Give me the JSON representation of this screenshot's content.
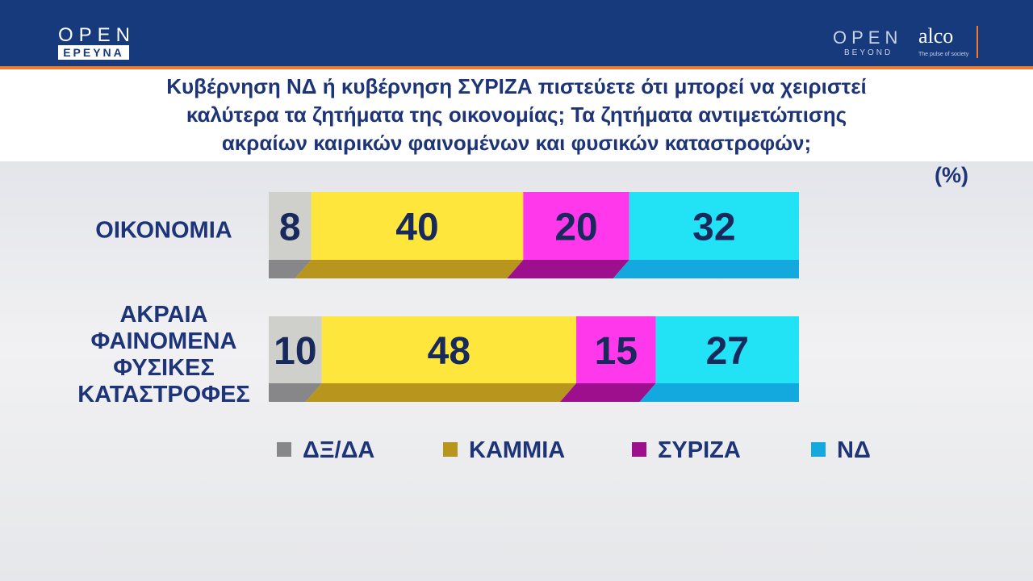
{
  "header": {
    "logo": "OPEN",
    "logo_sub": "ΕΡΕΥΝΑ",
    "partner_logo": "OPEN",
    "partner_sub": "BEYOND",
    "pollster": "alco",
    "pollster_tagline": "The pulse of society"
  },
  "chart_data": {
    "type": "bar",
    "orientation": "horizontal",
    "stacked": true,
    "title": "Κυβέρνηση ΝΔ ή κυβέρνηση ΣΥΡΙΖΑ πιστεύετε ότι μπορεί να χειριστεί\nκαλύτερα τα ζητήματα της οικονομίας; Τα ζητήματα αντιμετώπισης\nακραίων καιρικών φαινομένων και φυσικών καταστροφών;",
    "unit": "(%)",
    "categories": [
      "ΟΙΚΟΝΟΜΙΑ",
      "ΑΚΡΑΙΑ\nΦΑΙΝΟΜΕΝΑ\nΦΥΣΙΚΕΣ\nΚΑΤΑΣΤΡΟΦΕΣ"
    ],
    "xlim": [
      0,
      100
    ],
    "series": [
      {
        "name": "ΔΞ/ΔΑ",
        "color": "#cfcfcb",
        "side_color": "#87878a",
        "values": [
          8,
          10
        ]
      },
      {
        "name": "ΚΑΜΜΙΑ",
        "color": "#ffe63c",
        "side_color": "#b8951c",
        "values": [
          40,
          48
        ]
      },
      {
        "name": "ΣΥΡΙΖΑ",
        "color": "#ff38ec",
        "side_color": "#9e0f8d",
        "values": [
          20,
          15
        ]
      },
      {
        "name": "ΝΔ",
        "color": "#22e2f6",
        "side_color": "#14a9de",
        "values": [
          32,
          27
        ]
      }
    ]
  }
}
